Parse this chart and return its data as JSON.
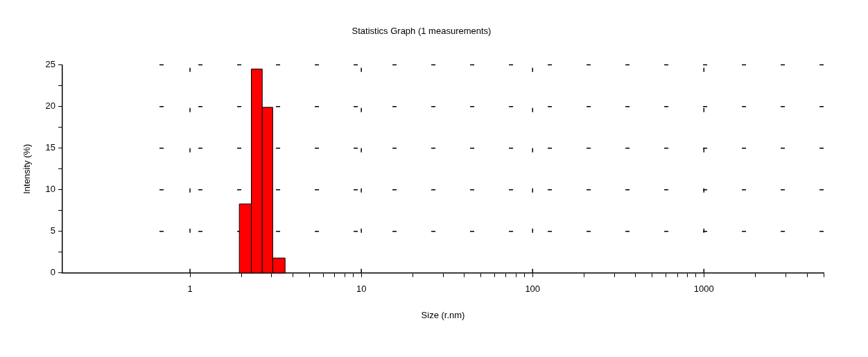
{
  "chart_data": {
    "type": "histogram",
    "title": "Statistics Graph (1 measurements)",
    "xlabel": "Size (r.nm)",
    "ylabel": "Intensity (%)",
    "bins": [
      1.94,
      2.28,
      2.64,
      3.04,
      3.59
    ],
    "values": [
      8.3,
      24.5,
      19.9,
      1.8
    ],
    "color": "#ff0000",
    "log": "x",
    "xlim": [
      0.18,
      5000
    ],
    "xticks": [
      1,
      {
        "value": 2,
        "label": null
      },
      {
        "value": 3,
        "label": null
      },
      {
        "value": 4,
        "label": null
      },
      {
        "value": 5,
        "label": null
      },
      {
        "value": 6,
        "label": null
      },
      {
        "value": 7,
        "label": null
      },
      {
        "value": 8,
        "label": null
      },
      {
        "value": 9,
        "label": null
      },
      10,
      {
        "value": 20,
        "label": null
      },
      {
        "value": 30,
        "label": null
      },
      {
        "value": 40,
        "label": null
      },
      {
        "value": 50,
        "label": null
      },
      {
        "value": 60,
        "label": null
      },
      {
        "value": 70,
        "label": null
      },
      {
        "value": 80,
        "label": null
      },
      {
        "value": 90,
        "label": null
      },
      100,
      {
        "value": 200,
        "label": null
      },
      {
        "value": 300,
        "label": null
      },
      {
        "value": 400,
        "label": null
      },
      {
        "value": 500,
        "label": null
      },
      {
        "value": 600,
        "label": null
      },
      {
        "value": 700,
        "label": null
      },
      {
        "value": 800,
        "label": null
      },
      {
        "value": 900,
        "label": null
      },
      1000,
      {
        "value": 2000,
        "label": null
      },
      {
        "value": 3000,
        "label": null
      },
      {
        "value": 4000,
        "label": null
      },
      {
        "value": 5000,
        "label": null
      }
    ],
    "ylim": [
      0,
      25
    ],
    "yticks": [
      0,
      {
        "value": 2.5,
        "label": null
      },
      5,
      {
        "value": 7.5,
        "label": null
      },
      10,
      {
        "value": 12.5,
        "label": null
      },
      15,
      {
        "value": 17.5,
        "label": null
      },
      20,
      {
        "value": 22.5,
        "label": null
      },
      25
    ],
    "grid": true,
    "legend": false
  }
}
